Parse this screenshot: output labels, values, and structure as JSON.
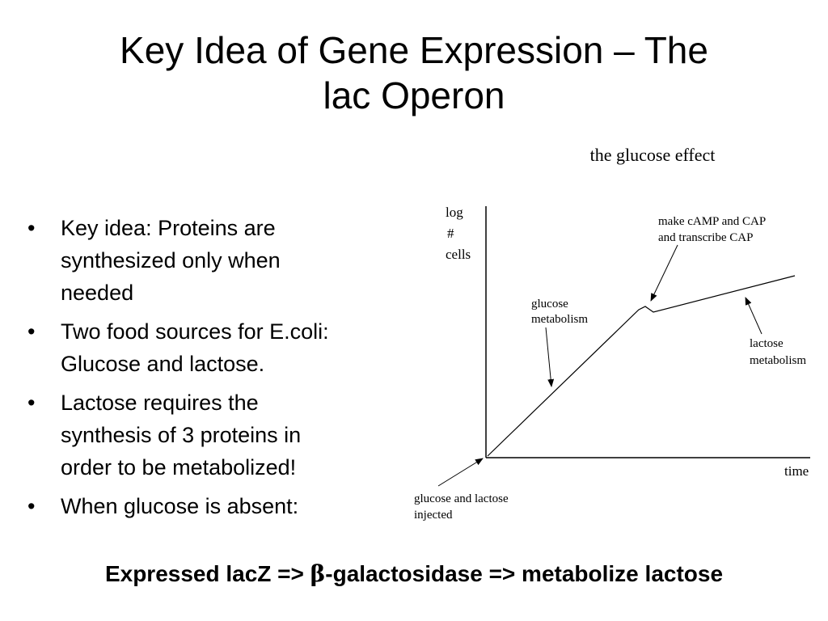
{
  "slide": {
    "title_line1": "Key Idea of Gene Expression – The",
    "title_line2": "lac Operon"
  },
  "bullets": [
    {
      "lines": [
        "Key idea: Proteins are",
        "synthesized only when",
        "needed"
      ]
    },
    {
      "lines": [
        "Two food sources for E.coli:",
        "Glucose and lactose."
      ]
    },
    {
      "lines": [
        "Lactose requires the",
        "synthesis of 3 proteins in",
        "order to be metabolized!"
      ]
    },
    {
      "lines": [
        "When glucose is absent:"
      ]
    }
  ],
  "bullet_symbol": "•",
  "figure": {
    "title": "the glucose effect",
    "ylabel_lines": [
      "log",
      "#",
      "cells"
    ],
    "xlabel": "time",
    "annotations": {
      "camp_lines": [
        "make cAMP and CAP",
        "and transcribe CAP"
      ],
      "glucose_lines": [
        "glucose",
        "metabolism"
      ],
      "lactose_lines": [
        "lactose",
        "metabolism"
      ],
      "injected_lines": [
        "glucose and lactose",
        "injected"
      ]
    }
  },
  "bottom": {
    "part1": "Expressed lacZ => ",
    "beta": "β",
    "part2": "-galactosidase => metabolize lactose"
  }
}
